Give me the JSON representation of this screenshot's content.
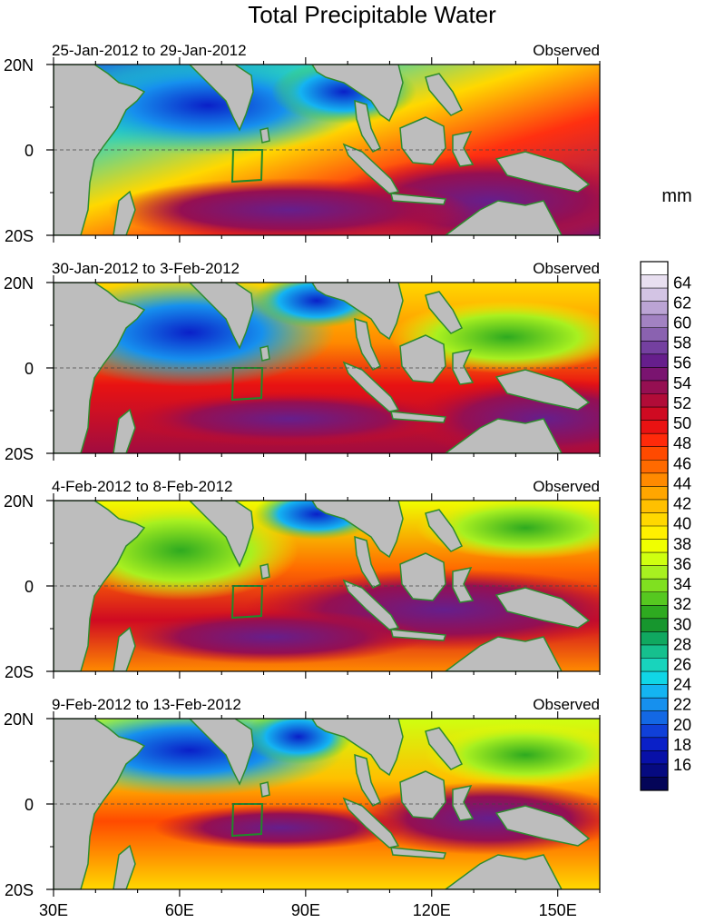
{
  "title": "Total Precipitable Water",
  "panels": [
    {
      "period": "25-Jan-2012 to 29-Jan-2012",
      "label": "Observed"
    },
    {
      "period": "30-Jan-2012 to 3-Feb-2012",
      "label": "Observed"
    },
    {
      "period": "4-Feb-2012 to 8-Feb-2012",
      "label": "Observed"
    },
    {
      "period": "9-Feb-2012 to 13-Feb-2012",
      "label": "Observed"
    }
  ],
  "lat_ticks": [
    "20N",
    "0",
    "20S"
  ],
  "lon_ticks": [
    "30E",
    "60E",
    "90E",
    "120E",
    "150E"
  ],
  "colorbar": {
    "units": "mm",
    "labels": [
      "64",
      "62",
      "60",
      "58",
      "56",
      "54",
      "52",
      "50",
      "48",
      "46",
      "44",
      "42",
      "40",
      "38",
      "36",
      "34",
      "32",
      "30",
      "28",
      "26",
      "24",
      "22",
      "20",
      "18",
      "16"
    ],
    "colors_top_to_bottom": [
      "#ffffff",
      "#e8dff0",
      "#d3c4e4",
      "#bba4d4",
      "#a282c2",
      "#8a62b0",
      "#7440a0",
      "#661e8c",
      "#7a1470",
      "#950f52",
      "#b10c38",
      "#cf0a22",
      "#ea1212",
      "#ff2a0a",
      "#ff4a00",
      "#ff6a00",
      "#ff8a00",
      "#ffa600",
      "#ffc000",
      "#ffd800",
      "#fff000",
      "#f0ff00",
      "#cfff10",
      "#a8f020",
      "#80e020",
      "#56c820",
      "#2eaa20",
      "#17962e",
      "#10a860",
      "#16c08e",
      "#18d4bc",
      "#10d6e6",
      "#14b4f2",
      "#1690ee",
      "#1368e4",
      "#1040d8",
      "#0a20c8",
      "#0810a8",
      "#060a80",
      "#040558"
    ]
  }
}
